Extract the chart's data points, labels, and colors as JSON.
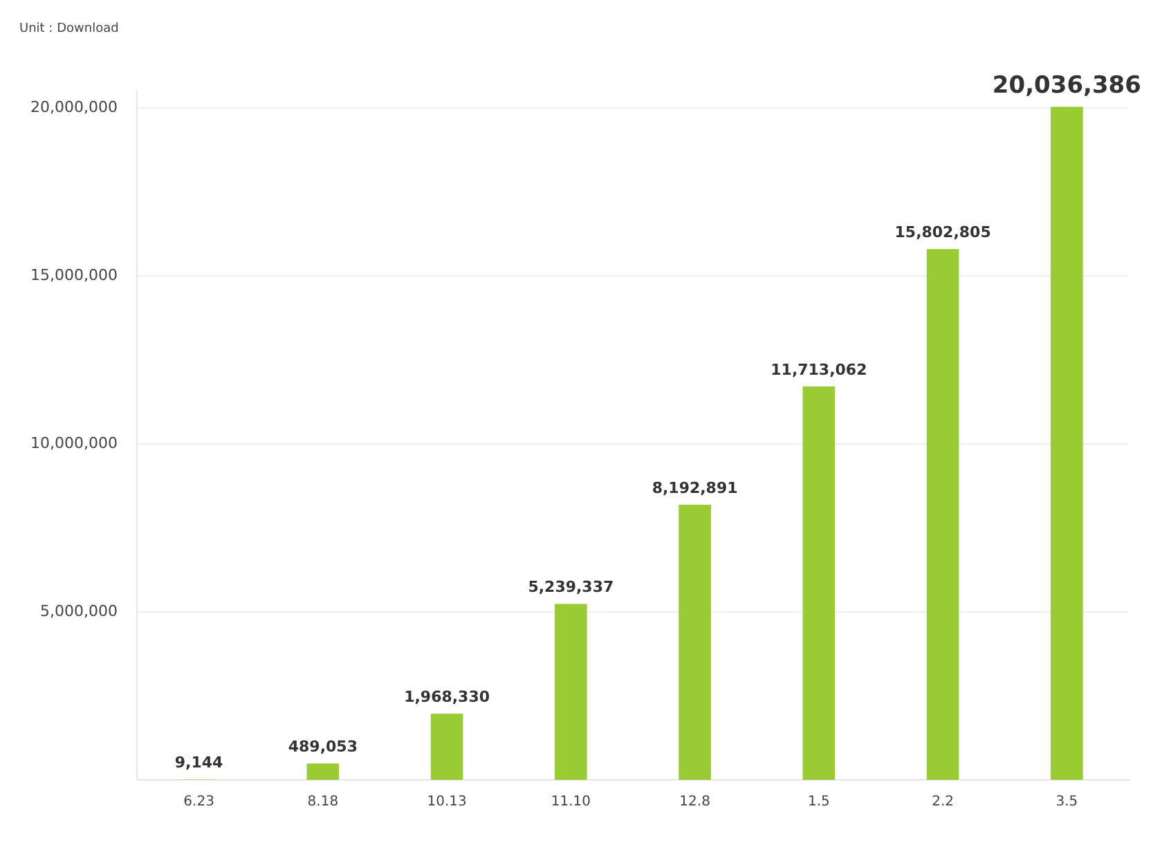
{
  "chart_data": {
    "type": "bar",
    "annotations": [
      "Unit : Download"
    ],
    "categories": [
      "6.23",
      "8.18",
      "10.13",
      "11.10",
      "12.8",
      "1.5",
      "2.2",
      "3.5"
    ],
    "values": [
      9144,
      489053,
      1968330,
      5239337,
      8192891,
      11713062,
      15802805,
      20036386
    ],
    "value_labels": [
      "9,144",
      "489,053",
      "1,968,330",
      "5,239,337",
      "8,192,891",
      "11,713,062",
      "15,802,805",
      "20,036,386"
    ],
    "color": "#99cc33",
    "ylim": [
      0,
      20500000
    ],
    "yticks": [
      {
        "value": 5000000,
        "label": "5,000,000"
      },
      {
        "value": 10000000,
        "label": "10,000,000"
      },
      {
        "value": 15000000,
        "label": "15,000,000"
      },
      {
        "value": 20000000,
        "label": "20,000,000"
      }
    ],
    "grid": "y"
  }
}
